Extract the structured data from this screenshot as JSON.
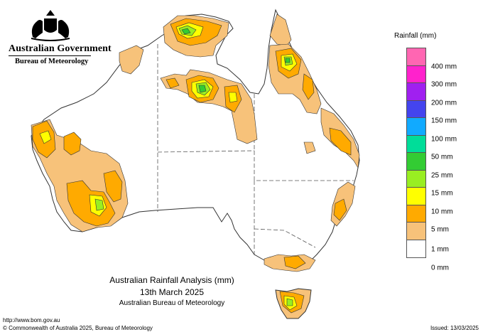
{
  "header": {
    "org_title": "Australian Government",
    "org_subtitle": "Bureau of Meteorology"
  },
  "legend": {
    "title": "Rainfall (mm)",
    "bins": [
      {
        "label": "",
        "color": "#ff66b2"
      },
      {
        "label": "400 mm",
        "color": "#ff22cc"
      },
      {
        "label": "300 mm",
        "color": "#a020f0"
      },
      {
        "label": "200 mm",
        "color": "#4444ee"
      },
      {
        "label": "150 mm",
        "color": "#11aaff"
      },
      {
        "label": "100 mm",
        "color": "#00dd99"
      },
      {
        "label": "50 mm",
        "color": "#33cc33"
      },
      {
        "label": "25 mm",
        "color": "#99ee22"
      },
      {
        "label": "15 mm",
        "color": "#ffff00"
      },
      {
        "label": "10 mm",
        "color": "#ffaa00"
      },
      {
        "label": "5 mm",
        "color": "#f7c27a"
      },
      {
        "label": "1 mm",
        "color": "#ffffff"
      },
      {
        "label": "0 mm",
        "color": ""
      }
    ]
  },
  "map": {
    "title_line1": "Australian Rainfall Analysis (mm)",
    "title_line2": "13th March 2025",
    "title_line3": "Australian Bureau of Meteorology",
    "colors": {
      "land": "#ffffff",
      "outline": "#333333",
      "border": "#555555",
      "r1": "#f7c27a",
      "r5": "#ffaa00",
      "r10": "#ffff00",
      "r15": "#99ee22",
      "r25": "#33cc33"
    }
  },
  "footer": {
    "url": "http://www.bom.gov.au",
    "copyright": "© Commonwealth of Australia 2025, Bureau of Meteorology",
    "issued": "Issued: 13/03/2025"
  }
}
